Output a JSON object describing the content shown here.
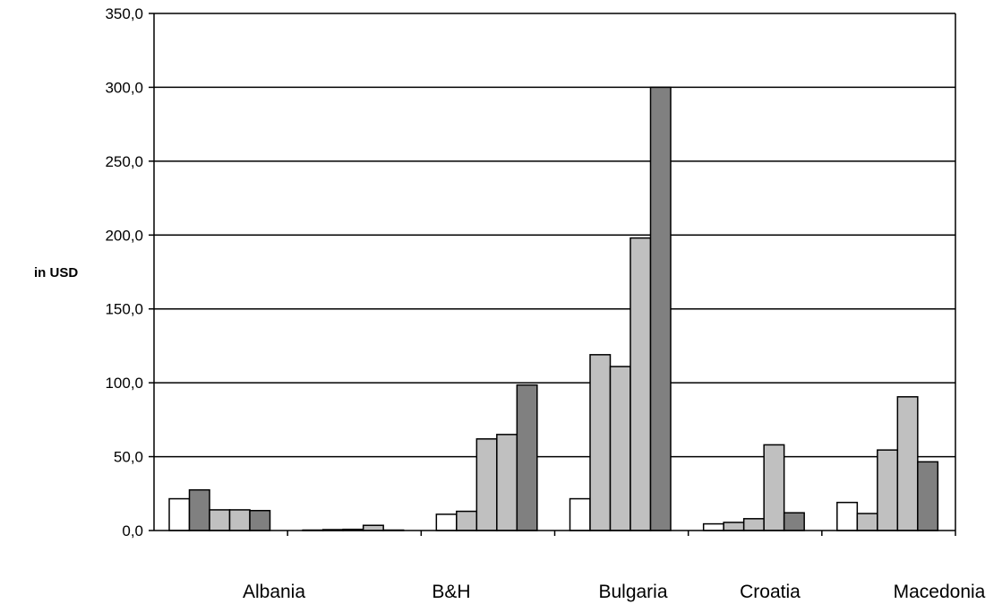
{
  "chart_data": {
    "type": "bar",
    "ylabel": "in USD",
    "ylim": [
      0,
      350
    ],
    "yticks": [
      "0,0",
      "50,0",
      "100,0",
      "150,0",
      "200,0",
      "250,0",
      "300,0",
      "350,0"
    ],
    "grid": true,
    "legend": "none",
    "categories": [
      "Albania",
      "",
      "B&H",
      "Bulgaria",
      "Croatia",
      "Macedonia"
    ],
    "series_colors": [
      "#ffffff",
      "#808080",
      "#c0c0c0",
      "#c0c0c0",
      "#808080"
    ],
    "groups": [
      {
        "values": [
          21.5,
          27.5,
          14.0,
          14.0,
          13.5
        ],
        "fills": [
          "#ffffff",
          "#808080",
          "#c0c0c0",
          "#c0c0c0",
          "#808080"
        ]
      },
      {
        "values": [
          0.3,
          0.6,
          0.8,
          3.5,
          0.3
        ],
        "fills": [
          "#ffffff",
          "#c0c0c0",
          "#c0c0c0",
          "#c0c0c0",
          "#808080"
        ]
      },
      {
        "values": [
          11.0,
          13.0,
          62.0,
          65.0,
          98.5
        ],
        "fills": [
          "#ffffff",
          "#c0c0c0",
          "#c0c0c0",
          "#c0c0c0",
          "#808080"
        ]
      },
      {
        "values": [
          21.5,
          119.0,
          111.0,
          198.0,
          300.0
        ],
        "fills": [
          "#ffffff",
          "#c0c0c0",
          "#c0c0c0",
          "#c0c0c0",
          "#808080"
        ]
      },
      {
        "values": [
          4.5,
          5.5,
          8.0,
          58.0,
          12.0
        ],
        "fills": [
          "#ffffff",
          "#c0c0c0",
          "#c0c0c0",
          "#c0c0c0",
          "#808080"
        ]
      },
      {
        "values": [
          19.0,
          11.5,
          54.5,
          90.5,
          46.5
        ],
        "fills": [
          "#ffffff",
          "#c0c0c0",
          "#c0c0c0",
          "#c0c0c0",
          "#808080"
        ]
      }
    ]
  }
}
